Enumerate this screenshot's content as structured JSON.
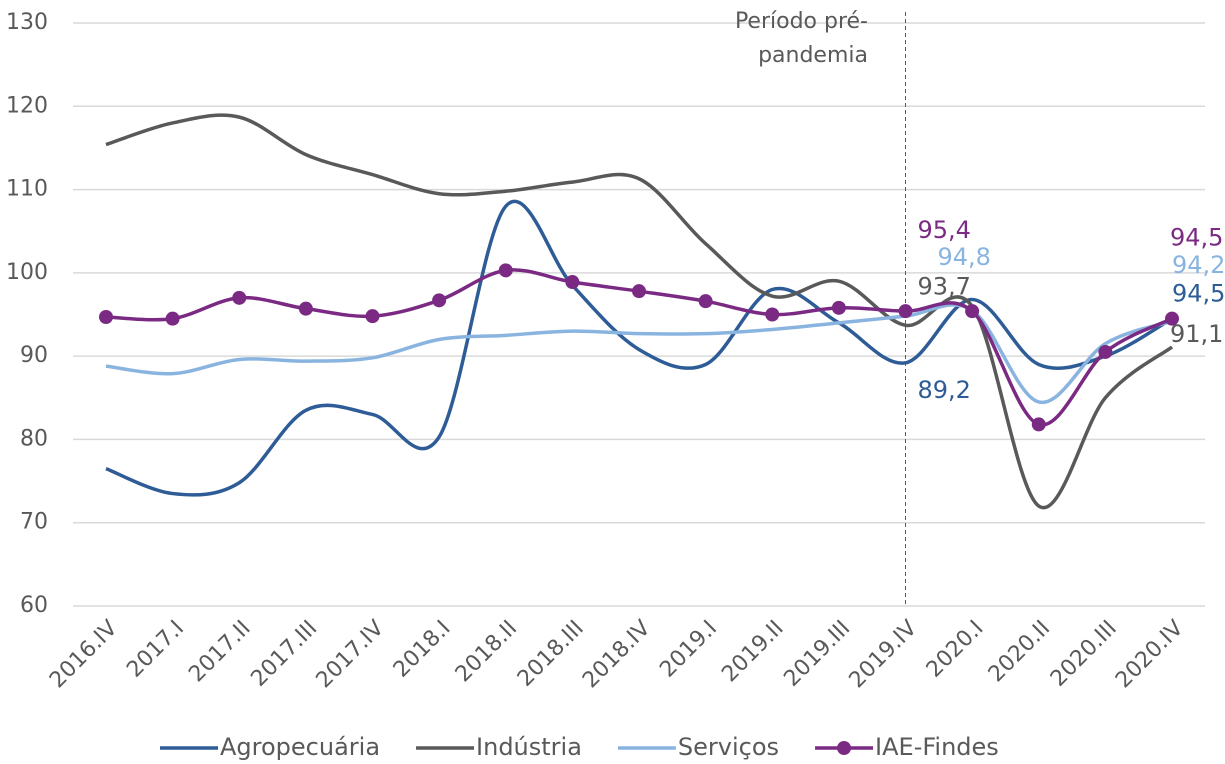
{
  "chart_data": {
    "type": "line",
    "categories": [
      "2016.IV",
      "2017.I",
      "2017.II",
      "2017.III",
      "2017.IV",
      "2018.I",
      "2018.II",
      "2018.III",
      "2018.IV",
      "2019.I",
      "2019.II",
      "2019.III",
      "2019.IV",
      "2020.I",
      "2020.II",
      "2020.III",
      "2020.IV"
    ],
    "series": [
      {
        "name": "Agropecuária",
        "color": "#2e5c96",
        "markers": false,
        "values": [
          76.5,
          73.5,
          74.8,
          83.5,
          83,
          80.3,
          108,
          98.5,
          90.8,
          89,
          98,
          94,
          89.2,
          96.8,
          89,
          90,
          94.5
        ],
        "value_labels": [
          null,
          null,
          null,
          null,
          null,
          null,
          null,
          null,
          null,
          null,
          null,
          null,
          "89,2",
          null,
          null,
          null,
          "94,5"
        ]
      },
      {
        "name": "Indústria",
        "color": "#595959",
        "markers": false,
        "values": [
          115.4,
          118,
          118.7,
          114.2,
          111.8,
          109.5,
          109.8,
          110.9,
          111.3,
          103.5,
          97.2,
          99,
          93.7,
          96,
          72,
          85,
          91.1
        ],
        "value_labels": [
          null,
          null,
          null,
          null,
          null,
          null,
          null,
          null,
          null,
          null,
          null,
          null,
          "93,7",
          null,
          null,
          null,
          "91,1"
        ]
      },
      {
        "name": "Serviços",
        "color": "#8ab4e0",
        "markers": false,
        "values": [
          88.8,
          87.9,
          89.6,
          89.4,
          89.8,
          92,
          92.5,
          93,
          92.7,
          92.7,
          93.2,
          94,
          94.8,
          95.5,
          84.5,
          91.5,
          94.2
        ],
        "value_labels": [
          null,
          null,
          null,
          null,
          null,
          null,
          null,
          null,
          null,
          null,
          null,
          null,
          "94,8",
          null,
          null,
          null,
          "94,2"
        ]
      },
      {
        "name": "IAE-Findes",
        "color": "#7b2a84",
        "markers": true,
        "values": [
          94.7,
          94.5,
          97,
          95.7,
          94.8,
          96.7,
          100.3,
          98.9,
          97.8,
          96.6,
          95,
          95.8,
          95.4,
          95.4,
          81.8,
          90.5,
          94.5
        ],
        "value_labels": [
          null,
          null,
          null,
          null,
          null,
          null,
          null,
          null,
          null,
          null,
          null,
          null,
          "95,4",
          null,
          null,
          null,
          "94,5"
        ]
      }
    ],
    "annotation": [
      "Período pré-",
      "pandemia"
    ],
    "annotation_category": "2019.IV",
    "ylim": [
      60,
      130
    ],
    "yticks": [
      60,
      70,
      80,
      90,
      100,
      110,
      120,
      130
    ],
    "grid": true,
    "legend": "bottom"
  }
}
